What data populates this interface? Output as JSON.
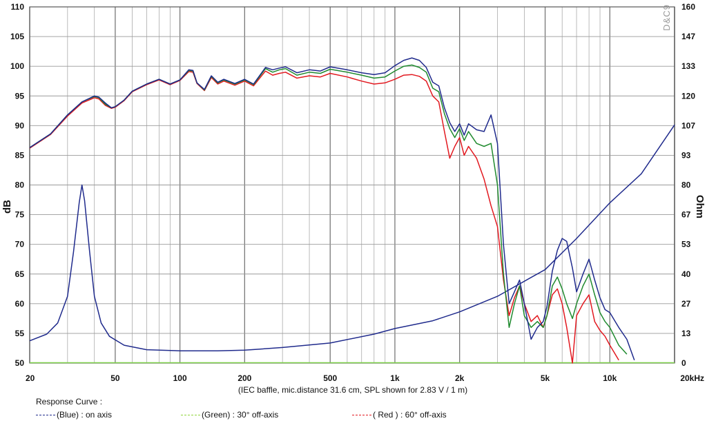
{
  "chart_data": {
    "type": "line",
    "xscale": "log",
    "xlim": [
      20,
      20000
    ],
    "ylim": [
      50,
      110
    ],
    "y2lim": [
      0,
      160
    ],
    "ylabel": "dB",
    "y2label": "Ohm",
    "x_tick_labels": [
      {
        "x": 20,
        "label": "20"
      },
      {
        "x": 50,
        "label": "50"
      },
      {
        "x": 100,
        "label": "100"
      },
      {
        "x": 200,
        "label": "200"
      },
      {
        "x": 500,
        "label": "500"
      },
      {
        "x": 1000,
        "label": "1k"
      },
      {
        "x": 2000,
        "label": "2k"
      },
      {
        "x": 5000,
        "label": "5k"
      },
      {
        "x": 10000,
        "label": "10k"
      },
      {
        "x": 20000,
        "label": "20kHz"
      }
    ],
    "y_ticks": [
      50,
      55,
      60,
      65,
      70,
      75,
      80,
      85,
      90,
      95,
      100,
      105,
      110
    ],
    "y2_tick_labels": [
      "0",
      "13",
      "27",
      "40",
      "53",
      "67",
      "80",
      "93",
      "107",
      "120",
      "133",
      "147",
      "160"
    ],
    "note": "(IEC baffle, mic.distance 31.6 cm, SPL shown for 2.83 V / 1 m)",
    "watermark": "D&C9",
    "grid": true,
    "series": [
      {
        "name": "on axis",
        "color": "#1f2a8c",
        "axis": "left",
        "points": [
          [
            20,
            86.3
          ],
          [
            25,
            88.6
          ],
          [
            30,
            91.8
          ],
          [
            35,
            94.0
          ],
          [
            40,
            95.0
          ],
          [
            42,
            94.8
          ],
          [
            45,
            93.8
          ],
          [
            48,
            93.0
          ],
          [
            50,
            93.2
          ],
          [
            55,
            94.3
          ],
          [
            60,
            95.8
          ],
          [
            70,
            97.0
          ],
          [
            80,
            97.8
          ],
          [
            90,
            97.0
          ],
          [
            100,
            97.7
          ],
          [
            110,
            99.4
          ],
          [
            115,
            99.3
          ],
          [
            120,
            97.2
          ],
          [
            130,
            96.1
          ],
          [
            140,
            98.4
          ],
          [
            150,
            97.3
          ],
          [
            160,
            97.8
          ],
          [
            180,
            97.1
          ],
          [
            200,
            97.8
          ],
          [
            220,
            97.0
          ],
          [
            250,
            99.8
          ],
          [
            270,
            99.4
          ],
          [
            290,
            99.7
          ],
          [
            310,
            99.9
          ],
          [
            350,
            98.9
          ],
          [
            400,
            99.4
          ],
          [
            450,
            99.2
          ],
          [
            500,
            99.9
          ],
          [
            600,
            99.4
          ],
          [
            700,
            98.9
          ],
          [
            800,
            98.6
          ],
          [
            900,
            98.9
          ],
          [
            1000,
            100.1
          ],
          [
            1100,
            101.0
          ],
          [
            1200,
            101.4
          ],
          [
            1300,
            101.0
          ],
          [
            1400,
            99.8
          ],
          [
            1500,
            97.3
          ],
          [
            1600,
            96.7
          ],
          [
            1700,
            93.0
          ],
          [
            1800,
            90.5
          ],
          [
            1900,
            89.0
          ],
          [
            2000,
            90.3
          ],
          [
            2100,
            88.4
          ],
          [
            2200,
            90.3
          ],
          [
            2400,
            89.3
          ],
          [
            2600,
            89.0
          ],
          [
            2800,
            91.8
          ],
          [
            3000,
            87.0
          ],
          [
            3200,
            70.0
          ],
          [
            3400,
            60.0
          ],
          [
            3600,
            62.0
          ],
          [
            3800,
            64.0
          ],
          [
            4000,
            60.0
          ],
          [
            4300,
            54.0
          ],
          [
            4600,
            56.0
          ],
          [
            4900,
            57.0
          ],
          [
            5100,
            59.5
          ],
          [
            5400,
            65.5
          ],
          [
            5700,
            69.0
          ],
          [
            6000,
            71.0
          ],
          [
            6300,
            70.5
          ],
          [
            6700,
            66.0
          ],
          [
            7000,
            62.0
          ],
          [
            7500,
            65.0
          ],
          [
            8000,
            67.5
          ],
          [
            8500,
            64.0
          ],
          [
            9000,
            61.0
          ],
          [
            9500,
            59.0
          ],
          [
            10000,
            58.5
          ],
          [
            11000,
            56.0
          ],
          [
            12000,
            54.0
          ],
          [
            13000,
            50.5
          ]
        ]
      },
      {
        "name": "30° off-axis",
        "color": "#1f8a2e",
        "axis": "left",
        "points": [
          [
            20,
            86.3
          ],
          [
            25,
            88.6
          ],
          [
            30,
            91.8
          ],
          [
            35,
            94.0
          ],
          [
            40,
            94.9
          ],
          [
            42,
            94.7
          ],
          [
            45,
            93.6
          ],
          [
            48,
            93.0
          ],
          [
            50,
            93.2
          ],
          [
            55,
            94.3
          ],
          [
            60,
            95.8
          ],
          [
            70,
            97.0
          ],
          [
            80,
            97.8
          ],
          [
            90,
            97.0
          ],
          [
            100,
            97.7
          ],
          [
            110,
            99.3
          ],
          [
            115,
            99.2
          ],
          [
            120,
            97.2
          ],
          [
            130,
            96.0
          ],
          [
            140,
            98.3
          ],
          [
            150,
            97.2
          ],
          [
            160,
            97.7
          ],
          [
            180,
            97.0
          ],
          [
            200,
            97.7
          ],
          [
            220,
            96.9
          ],
          [
            250,
            99.6
          ],
          [
            270,
            99.0
          ],
          [
            290,
            99.4
          ],
          [
            310,
            99.6
          ],
          [
            350,
            98.5
          ],
          [
            400,
            99.0
          ],
          [
            450,
            98.8
          ],
          [
            500,
            99.5
          ],
          [
            600,
            99.0
          ],
          [
            700,
            98.5
          ],
          [
            800,
            98.0
          ],
          [
            900,
            98.2
          ],
          [
            1000,
            99.2
          ],
          [
            1100,
            100.0
          ],
          [
            1200,
            100.2
          ],
          [
            1300,
            99.8
          ],
          [
            1400,
            99.0
          ],
          [
            1500,
            96.3
          ],
          [
            1600,
            95.7
          ],
          [
            1700,
            92.0
          ],
          [
            1800,
            89.5
          ],
          [
            1900,
            88.0
          ],
          [
            2000,
            89.5
          ],
          [
            2100,
            87.5
          ],
          [
            2200,
            89.0
          ],
          [
            2400,
            87.0
          ],
          [
            2600,
            86.5
          ],
          [
            2800,
            87.0
          ],
          [
            3000,
            80.0
          ],
          [
            3200,
            65.0
          ],
          [
            3400,
            56.0
          ],
          [
            3600,
            60.0
          ],
          [
            3800,
            63.0
          ],
          [
            4000,
            58.0
          ],
          [
            4300,
            56.0
          ],
          [
            4600,
            57.0
          ],
          [
            4900,
            56.0
          ],
          [
            5100,
            58.0
          ],
          [
            5400,
            63.0
          ],
          [
            5700,
            64.5
          ],
          [
            6000,
            62.5
          ],
          [
            6300,
            60.0
          ],
          [
            6700,
            57.5
          ],
          [
            7000,
            60.0
          ],
          [
            7500,
            63.0
          ],
          [
            8000,
            65.0
          ],
          [
            8500,
            61.5
          ],
          [
            9000,
            58.5
          ],
          [
            9500,
            57.0
          ],
          [
            10000,
            56.0
          ],
          [
            11000,
            53.0
          ],
          [
            12000,
            51.5
          ]
        ]
      },
      {
        "name": "60° off-axis",
        "color": "#e2181f",
        "axis": "left",
        "points": [
          [
            20,
            86.2
          ],
          [
            25,
            88.5
          ],
          [
            30,
            91.6
          ],
          [
            35,
            93.8
          ],
          [
            40,
            94.7
          ],
          [
            42,
            94.5
          ],
          [
            45,
            93.4
          ],
          [
            48,
            92.9
          ],
          [
            50,
            93.1
          ],
          [
            55,
            94.2
          ],
          [
            60,
            95.7
          ],
          [
            70,
            96.9
          ],
          [
            80,
            97.7
          ],
          [
            90,
            96.9
          ],
          [
            100,
            97.6
          ],
          [
            110,
            99.1
          ],
          [
            115,
            99.0
          ],
          [
            120,
            97.1
          ],
          [
            130,
            95.9
          ],
          [
            140,
            98.1
          ],
          [
            150,
            97.0
          ],
          [
            160,
            97.5
          ],
          [
            180,
            96.8
          ],
          [
            200,
            97.5
          ],
          [
            220,
            96.7
          ],
          [
            250,
            99.2
          ],
          [
            270,
            98.5
          ],
          [
            290,
            98.8
          ],
          [
            310,
            99.0
          ],
          [
            350,
            98.0
          ],
          [
            400,
            98.4
          ],
          [
            450,
            98.2
          ],
          [
            500,
            98.8
          ],
          [
            600,
            98.2
          ],
          [
            700,
            97.5
          ],
          [
            800,
            97.0
          ],
          [
            900,
            97.2
          ],
          [
            1000,
            97.8
          ],
          [
            1100,
            98.5
          ],
          [
            1200,
            98.6
          ],
          [
            1300,
            98.3
          ],
          [
            1400,
            97.5
          ],
          [
            1500,
            95.0
          ],
          [
            1600,
            94.0
          ],
          [
            1700,
            89.0
          ],
          [
            1800,
            84.5
          ],
          [
            1900,
            86.5
          ],
          [
            2000,
            88.0
          ],
          [
            2100,
            85.0
          ],
          [
            2200,
            86.5
          ],
          [
            2400,
            84.5
          ],
          [
            2600,
            81.0
          ],
          [
            2800,
            76.5
          ],
          [
            3000,
            73.0
          ],
          [
            3200,
            64.0
          ],
          [
            3400,
            58.0
          ],
          [
            3600,
            61.0
          ],
          [
            3800,
            63.0
          ],
          [
            4000,
            60.0
          ],
          [
            4300,
            57.0
          ],
          [
            4600,
            58.0
          ],
          [
            4900,
            56.0
          ],
          [
            5100,
            58.0
          ],
          [
            5400,
            61.5
          ],
          [
            5700,
            62.5
          ],
          [
            6000,
            60.0
          ],
          [
            6300,
            56.0
          ],
          [
            6700,
            50.0
          ],
          [
            7000,
            58.0
          ],
          [
            7500,
            60.0
          ],
          [
            8000,
            61.5
          ],
          [
            8500,
            57.0
          ],
          [
            9000,
            55.5
          ],
          [
            9500,
            54.5
          ],
          [
            10000,
            53.0
          ],
          [
            11000,
            50.5
          ]
        ]
      },
      {
        "name": "impedance",
        "color": "#1f2a8c",
        "axis": "right",
        "points": [
          [
            20,
            10
          ],
          [
            24,
            13
          ],
          [
            27,
            18
          ],
          [
            30,
            30
          ],
          [
            32,
            50
          ],
          [
            34,
            72
          ],
          [
            35,
            80
          ],
          [
            36,
            73
          ],
          [
            38,
            50
          ],
          [
            40,
            30
          ],
          [
            43,
            18
          ],
          [
            47,
            12
          ],
          [
            55,
            8
          ],
          [
            70,
            6
          ],
          [
            100,
            5.5
          ],
          [
            150,
            5.5
          ],
          [
            200,
            5.8
          ],
          [
            300,
            7
          ],
          [
            500,
            9
          ],
          [
            800,
            13
          ],
          [
            1000,
            15.5
          ],
          [
            1500,
            19
          ],
          [
            2000,
            23
          ],
          [
            3000,
            30
          ],
          [
            5000,
            42
          ],
          [
            7000,
            56
          ],
          [
            10000,
            72
          ],
          [
            14000,
            85
          ],
          [
            20000,
            107
          ]
        ]
      }
    ]
  },
  "legend": {
    "title": "Response Curve :",
    "items": [
      {
        "label": "(Blue)  : on axis",
        "color": "#1f2a8c"
      },
      {
        "label": "(Green) : 30° off-axis",
        "color": "#8fd43a"
      },
      {
        "label": "( Red ) : 60° off-axis",
        "color": "#e2181f"
      }
    ]
  }
}
